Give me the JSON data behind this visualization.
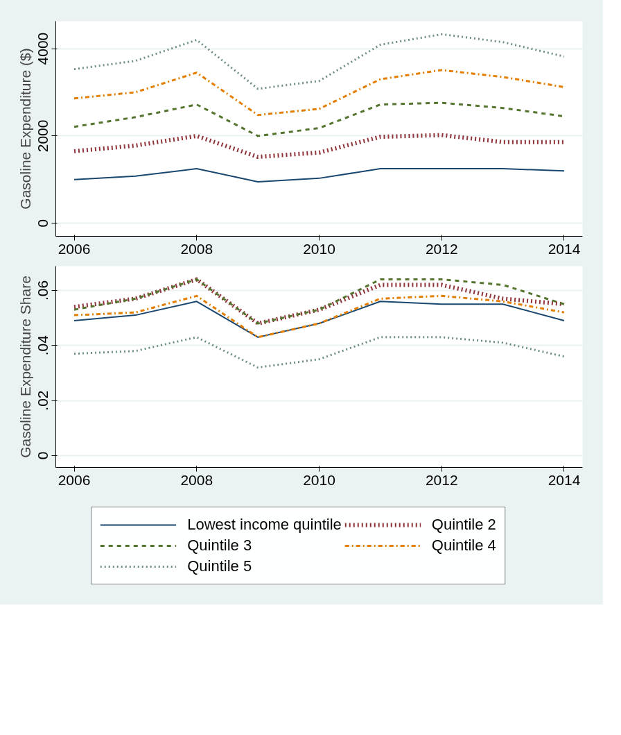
{
  "chart_data": [
    {
      "type": "line",
      "ylabel": "Gasoline Expenditure ($)",
      "x": [
        2006,
        2007,
        2008,
        2009,
        2010,
        2011,
        2012,
        2013,
        2014
      ],
      "xlim": [
        2005.7,
        2014.3
      ],
      "xticks": [
        2006,
        2008,
        2010,
        2012,
        2014
      ],
      "ylim": [
        -300,
        4630
      ],
      "yticks": [
        0,
        2000,
        4000
      ],
      "grid": "y",
      "legend": false,
      "series": [
        {
          "color": "#1a476f",
          "line_style": "solid",
          "values": [
            1000,
            1080,
            1250,
            950,
            1030,
            1250,
            1250,
            1250,
            1200
          ]
        },
        {
          "color": "#90353b",
          "line_style": "dotted",
          "values": [
            1650,
            1780,
            2000,
            1520,
            1620,
            1980,
            2020,
            1860,
            1860
          ]
        },
        {
          "color": "#55752f",
          "line_style": "dashed",
          "values": [
            2210,
            2430,
            2720,
            2000,
            2180,
            2720,
            2760,
            2640,
            2450
          ]
        },
        {
          "color": "#e37e00",
          "line_style": "dashdot",
          "values": [
            2860,
            3000,
            3450,
            2480,
            2620,
            3300,
            3510,
            3350,
            3120
          ]
        },
        {
          "color": "#6e8e84",
          "line_style": "dotted",
          "values": [
            3530,
            3720,
            4200,
            3080,
            3260,
            4090,
            4330,
            4150,
            3820
          ]
        }
      ]
    },
    {
      "type": "line",
      "ylabel": "Gasoline Expenditure Share",
      "x": [
        2006,
        2007,
        2008,
        2009,
        2010,
        2011,
        2012,
        2013,
        2014
      ],
      "xlim": [
        2005.7,
        2014.3
      ],
      "xticks": [
        2006,
        2008,
        2010,
        2012,
        2014
      ],
      "ylim": [
        -0.0043,
        0.0688
      ],
      "yticks": [
        {
          "value": 0,
          "label": "0"
        },
        {
          "value": 0.02,
          "label": ".02"
        },
        {
          "value": 0.04,
          "label": ".04"
        },
        {
          "value": 0.06,
          "label": ".06"
        }
      ],
      "grid": "y",
      "legend": "bottom",
      "series": [
        {
          "name": "Lowest income quintile",
          "color": "#1a476f",
          "line_style": "solid",
          "values": [
            0.049,
            0.051,
            0.056,
            0.043,
            0.048,
            0.056,
            0.055,
            0.055,
            0.049
          ]
        },
        {
          "name": "Quintile 2",
          "color": "#90353b",
          "line_style": "dotted",
          "values": [
            0.054,
            0.057,
            0.064,
            0.048,
            0.053,
            0.062,
            0.062,
            0.057,
            0.055
          ]
        },
        {
          "name": "Quintile 3",
          "color": "#55752f",
          "line_style": "dashed",
          "values": [
            0.053,
            0.057,
            0.064,
            0.048,
            0.053,
            0.064,
            0.064,
            0.062,
            0.055
          ]
        },
        {
          "name": "Quintile 4",
          "color": "#e37e00",
          "line_style": "dashdot",
          "values": [
            0.051,
            0.052,
            0.058,
            0.043,
            0.048,
            0.057,
            0.058,
            0.056,
            0.052
          ]
        },
        {
          "name": "Quintile 5",
          "color": "#6e8e84",
          "line_style": "dotted",
          "values": [
            0.037,
            0.038,
            0.043,
            0.032,
            0.035,
            0.043,
            0.043,
            0.041,
            0.036
          ]
        }
      ]
    }
  ]
}
